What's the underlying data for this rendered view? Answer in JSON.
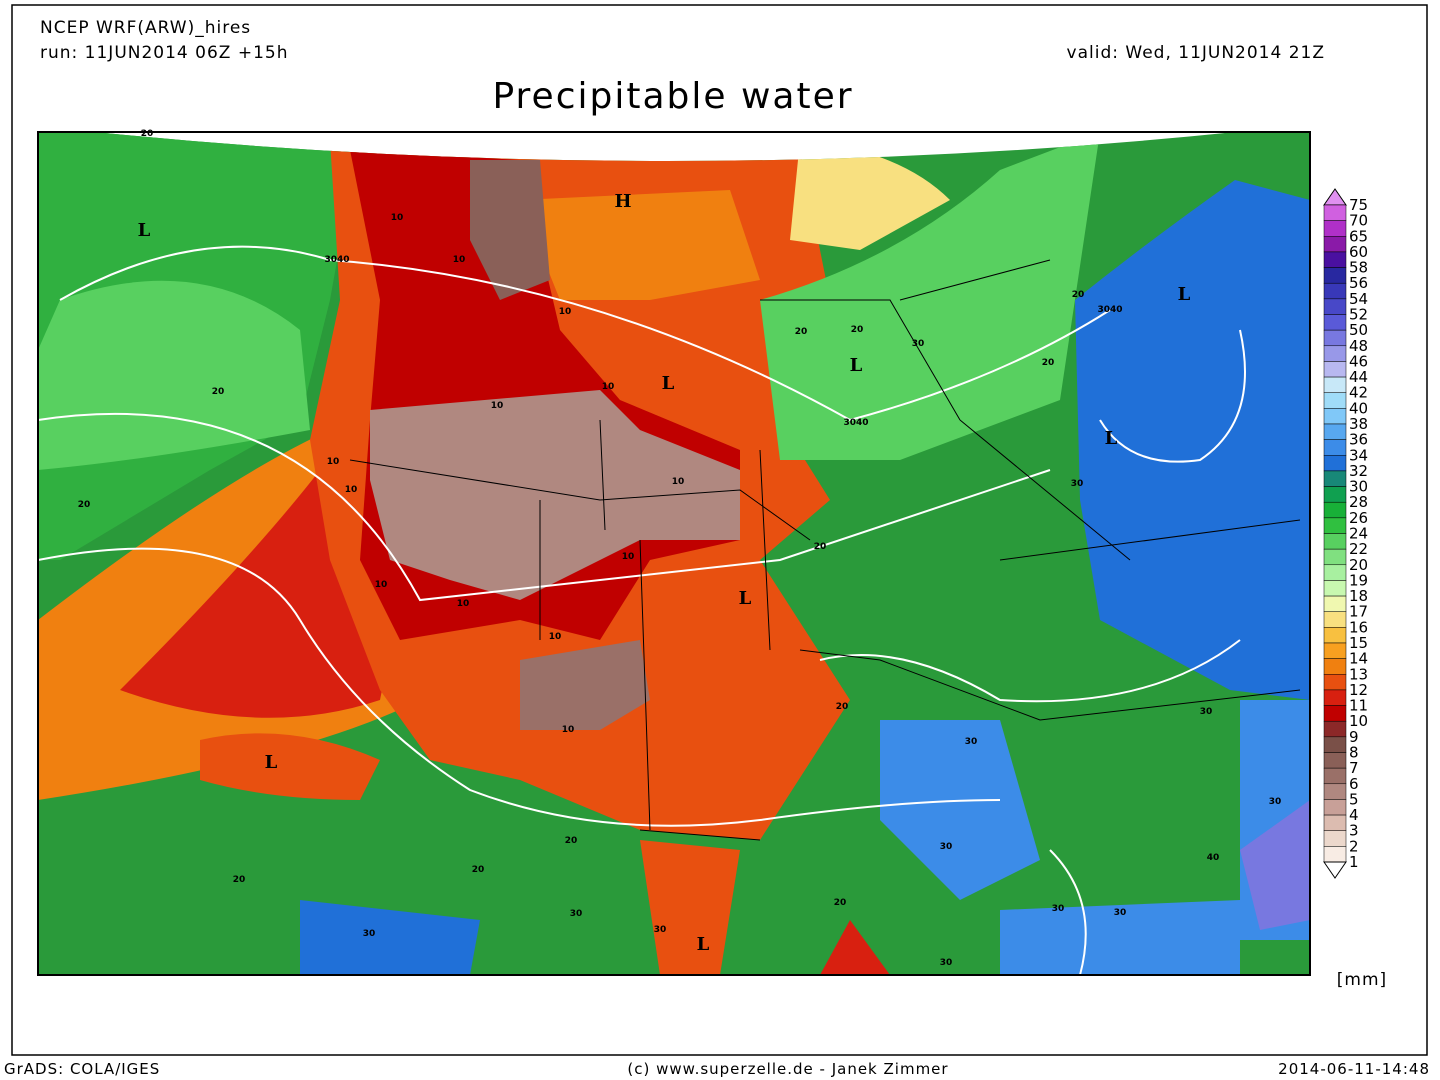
{
  "header": {
    "model": "NCEP WRF(ARW)_hires",
    "run": "run: 11JUN2014 06Z +15h",
    "valid": "valid: Wed, 11JUN2014 21Z",
    "title": "Precipitable water"
  },
  "legend": {
    "levels": [
      75,
      70,
      65,
      60,
      58,
      56,
      54,
      52,
      50,
      48,
      46,
      44,
      42,
      40,
      38,
      36,
      34,
      32,
      30,
      28,
      26,
      24,
      22,
      20,
      19,
      18,
      17,
      16,
      15,
      14,
      13,
      12,
      11,
      10,
      9,
      8,
      7,
      6,
      5,
      4,
      3,
      2,
      1
    ],
    "colors": [
      "#d060e0",
      "#b030c8",
      "#8a1aa8",
      "#4a10a0",
      "#2828a0",
      "#3838b8",
      "#4848c8",
      "#5a5ad8",
      "#7878e0",
      "#9898e8",
      "#b8b8f0",
      "#c8e8f8",
      "#a0dcf8",
      "#80c8f8",
      "#58a8f0",
      "#3c8ce8",
      "#2070d8",
      "#188878",
      "#10a050",
      "#18b038",
      "#30c040",
      "#58d060",
      "#80e080",
      "#a8f0a0",
      "#c8f8b0",
      "#f0f8b0",
      "#f8e080",
      "#f8c040",
      "#f8a020",
      "#f08010",
      "#e85010",
      "#d82010",
      "#c00000",
      "#8c2828",
      "#7a5048",
      "#8a6058",
      "#9a7068",
      "#b08880",
      "#c8a098",
      "#dcbcb0",
      "#ecd8cc",
      "#f8ece4"
    ],
    "top_color": "#e090f0",
    "bottom_color": "#ffffff",
    "unit": "[mm]"
  },
  "map": {
    "pressure_centers": [
      "L",
      "H",
      "L",
      "L",
      "L",
      "L",
      "L",
      "L",
      "L"
    ],
    "contour_labels": [
      "3040",
      "3040",
      "3040",
      "20",
      "10",
      "10",
      "10",
      "10",
      "10",
      "10",
      "10",
      "10",
      "10",
      "10",
      "10",
      "10",
      "10",
      "20",
      "20",
      "20",
      "20",
      "20",
      "20",
      "20",
      "20",
      "20",
      "20",
      "20",
      "20",
      "30",
      "30",
      "30",
      "30",
      "30",
      "30",
      "40",
      "30",
      "30",
      "30",
      "30",
      "30",
      "30"
    ]
  },
  "footer": {
    "left": "GrADS: COLA/IGES",
    "center": "(c) www.superzelle.de - Janek Zimmer",
    "right": "2014-06-11-14:48"
  }
}
